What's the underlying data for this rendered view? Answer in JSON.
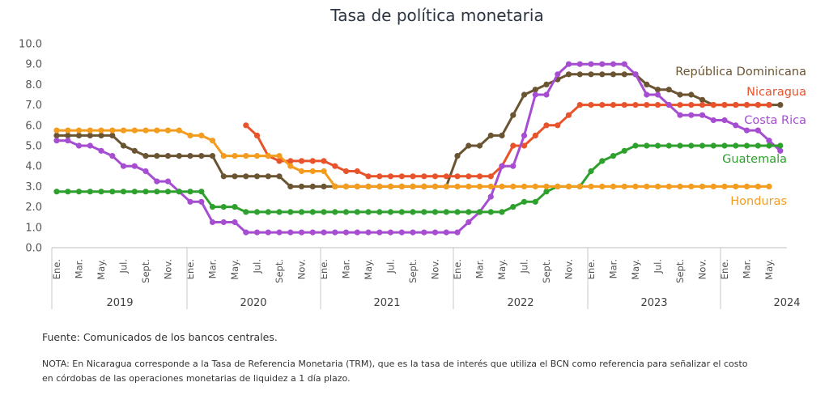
{
  "chart_data": {
    "type": "line",
    "title": "Tasa de política monetaria",
    "ylim": [
      0,
      10
    ],
    "yticks": [
      "0.0",
      "1.0",
      "2.0",
      "3.0",
      "4.0",
      "5.0",
      "6.0",
      "7.0",
      "8.0",
      "9.0",
      "10.0"
    ],
    "grid": false,
    "month_labels": [
      "Ene.",
      "Mar.",
      "May.",
      "Jul.",
      "Sept.",
      "Nov.",
      "Ene.",
      "Mar.",
      "May.",
      "Jul.",
      "Sept.",
      "Nov.",
      "Ene.",
      "Mar.",
      "May.",
      "Jul.",
      "Sept.",
      "Nov.",
      "Ene.",
      "Mar.",
      "May.",
      "Jul.",
      "Sept.",
      "Nov.",
      "Ene.",
      "Mar.",
      "May.",
      "Jul.",
      "Sept.",
      "Nov.",
      "Ene.",
      "Mar.",
      "May."
    ],
    "years": [
      "2019",
      "2020",
      "2021",
      "2022",
      "2023",
      "2024"
    ],
    "series": [
      {
        "name": "República Dominicana",
        "color": "#6b5431",
        "values": [
          5.5,
          5.5,
          5.5,
          5.5,
          5.5,
          5.5,
          5.0,
          4.75,
          4.5,
          4.5,
          4.5,
          4.5,
          4.5,
          4.5,
          4.5,
          3.5,
          3.5,
          3.5,
          3.5,
          3.5,
          3.5,
          3.0,
          3.0,
          3.0,
          3.0,
          3.0,
          3.0,
          3.0,
          3.0,
          3.0,
          3.0,
          3.0,
          3.0,
          3.0,
          3.0,
          3.0,
          4.5,
          5.0,
          5.0,
          5.5,
          5.5,
          6.5,
          7.5,
          7.75,
          8.0,
          8.25,
          8.5,
          8.5,
          8.5,
          8.5,
          8.5,
          8.5,
          8.5,
          8.0,
          7.75,
          7.75,
          7.5,
          7.5,
          7.25,
          7.0,
          7.0,
          7.0,
          7.0,
          7.0,
          7.0,
          7.0
        ]
      },
      {
        "name": "Nicaragua",
        "color": "#e8532b",
        "values": [
          null,
          null,
          null,
          null,
          null,
          null,
          null,
          null,
          null,
          null,
          null,
          null,
          null,
          null,
          null,
          null,
          null,
          6.0,
          5.5,
          4.5,
          4.25,
          4.25,
          4.25,
          4.25,
          4.25,
          4.0,
          3.75,
          3.75,
          3.5,
          3.5,
          3.5,
          3.5,
          3.5,
          3.5,
          3.5,
          3.5,
          3.5,
          3.5,
          3.5,
          3.5,
          4.0,
          5.0,
          5.0,
          5.5,
          6.0,
          6.0,
          6.5,
          7.0,
          7.0,
          7.0,
          7.0,
          7.0,
          7.0,
          7.0,
          7.0,
          7.0,
          7.0,
          7.0,
          7.0,
          7.0,
          7.0,
          7.0,
          7.0,
          7.0,
          7.0,
          null
        ]
      },
      {
        "name": "Costa Rica",
        "color": "#a64dd1",
        "values": [
          5.25,
          5.25,
          5.0,
          5.0,
          4.75,
          4.5,
          4.0,
          4.0,
          3.75,
          3.25,
          3.25,
          2.75,
          2.25,
          2.25,
          1.25,
          1.25,
          1.25,
          0.75,
          0.75,
          0.75,
          0.75,
          0.75,
          0.75,
          0.75,
          0.75,
          0.75,
          0.75,
          0.75,
          0.75,
          0.75,
          0.75,
          0.75,
          0.75,
          0.75,
          0.75,
          0.75,
          0.75,
          1.25,
          1.75,
          2.5,
          4.0,
          4.0,
          5.5,
          7.5,
          7.5,
          8.5,
          9.0,
          9.0,
          9.0,
          9.0,
          9.0,
          9.0,
          8.5,
          7.5,
          7.5,
          7.0,
          6.5,
          6.5,
          6.5,
          6.25,
          6.25,
          6.0,
          5.75,
          5.75,
          5.25,
          4.75
        ]
      },
      {
        "name": "Guatemala",
        "color": "#2ea02e",
        "values": [
          2.75,
          2.75,
          2.75,
          2.75,
          2.75,
          2.75,
          2.75,
          2.75,
          2.75,
          2.75,
          2.75,
          2.75,
          2.75,
          2.75,
          2.0,
          2.0,
          2.0,
          1.75,
          1.75,
          1.75,
          1.75,
          1.75,
          1.75,
          1.75,
          1.75,
          1.75,
          1.75,
          1.75,
          1.75,
          1.75,
          1.75,
          1.75,
          1.75,
          1.75,
          1.75,
          1.75,
          1.75,
          1.75,
          1.75,
          1.75,
          1.75,
          2.0,
          2.25,
          2.25,
          2.75,
          3.0,
          3.0,
          3.0,
          3.75,
          4.25,
          4.5,
          4.75,
          5.0,
          5.0,
          5.0,
          5.0,
          5.0,
          5.0,
          5.0,
          5.0,
          5.0,
          5.0,
          5.0,
          5.0,
          5.0,
          5.0
        ]
      },
      {
        "name": "Honduras",
        "color": "#f39c1e",
        "values": [
          5.75,
          5.75,
          5.75,
          5.75,
          5.75,
          5.75,
          5.75,
          5.75,
          5.75,
          5.75,
          5.75,
          5.75,
          5.5,
          5.5,
          5.25,
          4.5,
          4.5,
          4.5,
          4.5,
          4.5,
          4.5,
          4.0,
          3.75,
          3.75,
          3.75,
          3.0,
          3.0,
          3.0,
          3.0,
          3.0,
          3.0,
          3.0,
          3.0,
          3.0,
          3.0,
          3.0,
          3.0,
          3.0,
          3.0,
          3.0,
          3.0,
          3.0,
          3.0,
          3.0,
          3.0,
          3.0,
          3.0,
          3.0,
          3.0,
          3.0,
          3.0,
          3.0,
          3.0,
          3.0,
          3.0,
          3.0,
          3.0,
          3.0,
          3.0,
          3.0,
          3.0,
          3.0,
          3.0,
          3.0,
          3.0,
          null
        ]
      }
    ]
  },
  "footer": {
    "source": "Fuente: Comunicados de los bancos centrales.",
    "note": "NOTA: En Nicaragua corresponde a la Tasa de Referencia Monetaria (TRM), que es la tasa de interés que utiliza el BCN como referencia para señalizar el costo en córdobas de las operaciones monetarias de liquidez a 1 día plazo."
  }
}
